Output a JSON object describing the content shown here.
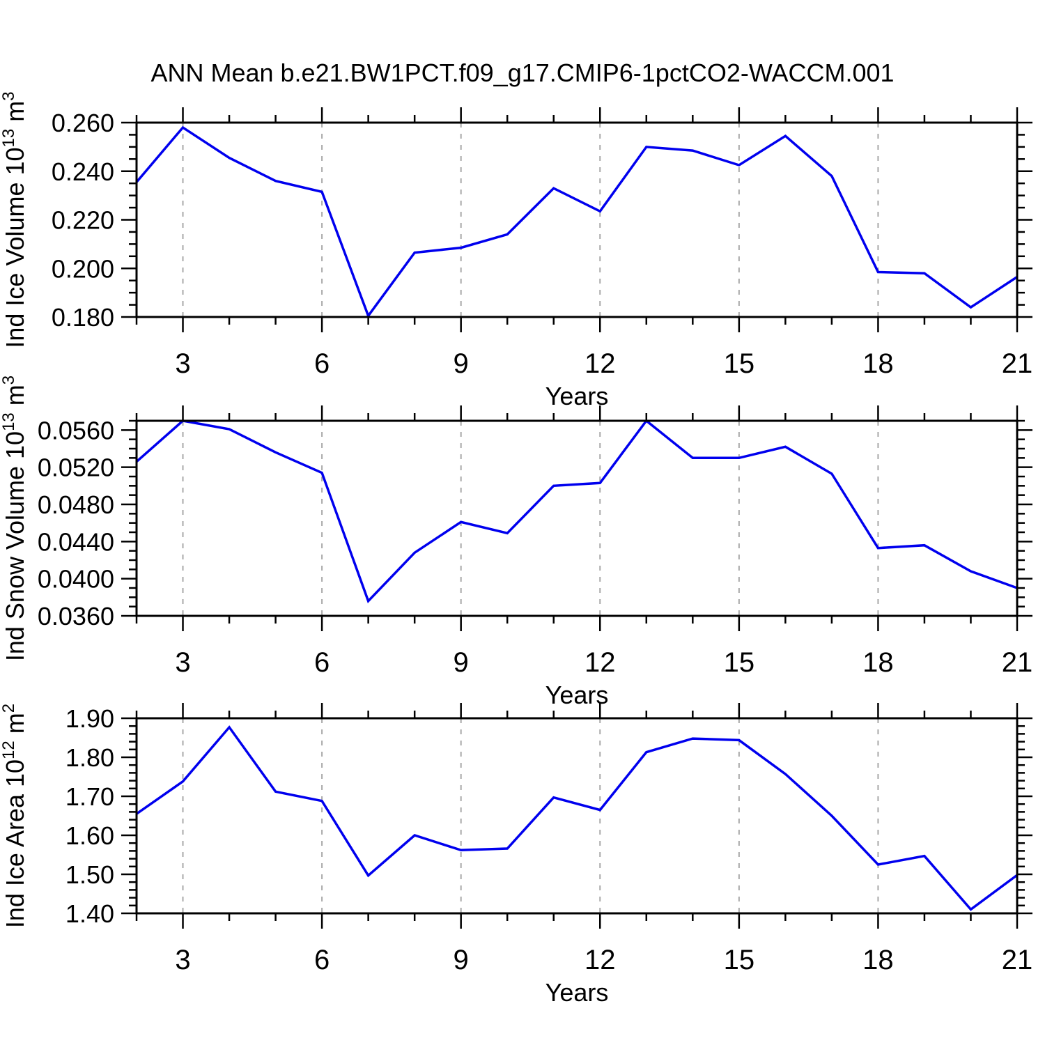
{
  "title": "ANN Mean b.e21.BW1PCT.f09_g17.CMIP6-1pctCO2-WACCM.001",
  "colors": {
    "line": "#0000ee",
    "axis": "#000000",
    "grid": "#a9a9a9",
    "background": "#ffffff",
    "text": "#000000"
  },
  "chart_data": [
    {
      "type": "line",
      "ylabel": "Ind Ice Volume 10^13 m^3",
      "ylabel_segments": [
        {
          "t": "Ind Ice Volume 10"
        },
        {
          "sup": "13"
        },
        {
          "t": " m"
        },
        {
          "sup": "3"
        }
      ],
      "xlabel": "Years",
      "x": [
        2,
        3,
        4,
        5,
        6,
        7,
        8,
        9,
        10,
        11,
        12,
        13,
        14,
        15,
        16,
        17,
        18,
        19,
        20,
        21
      ],
      "series": [
        {
          "name": "Ind Ice Volume",
          "values": [
            0.2355,
            0.258,
            0.2455,
            0.236,
            0.2315,
            0.1805,
            0.2065,
            0.2085,
            0.214,
            0.233,
            0.2235,
            0.25,
            0.2485,
            0.2425,
            0.2545,
            0.238,
            0.1985,
            0.198,
            0.184,
            0.1965
          ]
        }
      ],
      "xlim": [
        2,
        21
      ],
      "ylim": [
        0.18,
        0.26
      ],
      "yticks": [
        0.18,
        0.2,
        0.22,
        0.24,
        0.26
      ],
      "ytick_labels": [
        "0.180",
        "0.200",
        "0.220",
        "0.240",
        "0.260"
      ],
      "yminor_step": 0.005,
      "xticks": [
        3,
        6,
        9,
        12,
        15,
        18,
        21
      ],
      "xtick_labels": [
        "3",
        "6",
        "9",
        "12",
        "15",
        "18",
        "21"
      ],
      "xminor_step": 1,
      "grid_x": [
        3,
        6,
        9,
        12,
        15,
        18
      ],
      "grid_on": true,
      "legend": "none"
    },
    {
      "type": "line",
      "ylabel": "Ind Snow Volume 10^13 m^3",
      "ylabel_segments": [
        {
          "t": "Ind Snow Volume 10"
        },
        {
          "sup": "13"
        },
        {
          "t": " m"
        },
        {
          "sup": "3"
        }
      ],
      "xlabel": "Years",
      "x": [
        2,
        3,
        4,
        5,
        6,
        7,
        8,
        9,
        10,
        11,
        12,
        13,
        14,
        15,
        16,
        17,
        18,
        19,
        20,
        21
      ],
      "series": [
        {
          "name": "Ind Snow Volume",
          "values": [
            0.0526,
            0.057,
            0.0561,
            0.0536,
            0.0514,
            0.0376,
            0.0428,
            0.0461,
            0.0449,
            0.05,
            0.0503,
            0.057,
            0.053,
            0.053,
            0.0542,
            0.0513,
            0.0433,
            0.0436,
            0.0408,
            0.039
          ]
        }
      ],
      "xlim": [
        2,
        21
      ],
      "ylim": [
        0.036,
        0.057
      ],
      "yticks": [
        0.036,
        0.04,
        0.044,
        0.048,
        0.052,
        0.056
      ],
      "ytick_labels": [
        "0.0360",
        "0.0400",
        "0.0440",
        "0.0480",
        "0.0520",
        "0.0560"
      ],
      "yminor_step": 0.001,
      "xticks": [
        3,
        6,
        9,
        12,
        15,
        18,
        21
      ],
      "xtick_labels": [
        "3",
        "6",
        "9",
        "12",
        "15",
        "18",
        "21"
      ],
      "xminor_step": 1,
      "grid_x": [
        3,
        6,
        9,
        12,
        15,
        18
      ],
      "grid_on": true,
      "legend": "none"
    },
    {
      "type": "line",
      "ylabel": "Ind Ice Area 10^12 m^2",
      "ylabel_segments": [
        {
          "t": "Ind Ice Area 10"
        },
        {
          "sup": "12"
        },
        {
          "t": " m"
        },
        {
          "sup": "2"
        }
      ],
      "xlabel": "Years",
      "x": [
        2,
        3,
        4,
        5,
        6,
        7,
        8,
        9,
        10,
        11,
        12,
        13,
        14,
        15,
        16,
        17,
        18,
        19,
        20,
        21
      ],
      "series": [
        {
          "name": "Ind Ice Area",
          "values": [
            1.655,
            1.738,
            1.877,
            1.712,
            1.688,
            1.497,
            1.6,
            1.562,
            1.566,
            1.697,
            1.665,
            1.813,
            1.848,
            1.844,
            1.757,
            1.65,
            1.525,
            1.547,
            1.41,
            1.498
          ]
        }
      ],
      "xlim": [
        2,
        21
      ],
      "ylim": [
        1.4,
        1.9
      ],
      "yticks": [
        1.4,
        1.5,
        1.6,
        1.7,
        1.8,
        1.9
      ],
      "ytick_labels": [
        "1.40",
        "1.50",
        "1.60",
        "1.70",
        "1.80",
        "1.90"
      ],
      "yminor_step": 0.02,
      "xticks": [
        3,
        6,
        9,
        12,
        15,
        18,
        21
      ],
      "xtick_labels": [
        "3",
        "6",
        "9",
        "12",
        "15",
        "18",
        "21"
      ],
      "xminor_step": 1,
      "grid_x": [
        3,
        6,
        9,
        12,
        15,
        18
      ],
      "grid_on": true,
      "legend": "none"
    }
  ]
}
